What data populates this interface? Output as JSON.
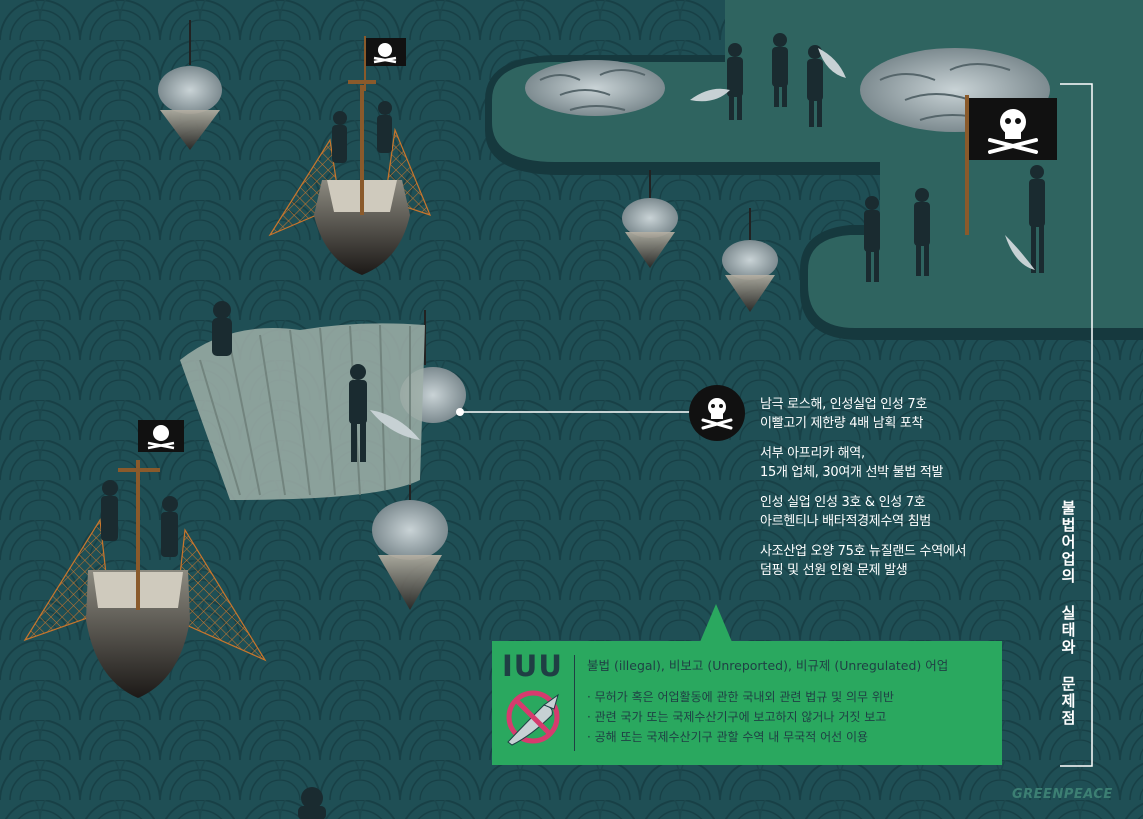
{
  "facts": [
    {
      "line1": "남극 로스해, 인성실업 인성 7호",
      "line2": "이빨고기 제한량 4배 남획 포착"
    },
    {
      "line1": "서부 아프리카 해역,",
      "line2": "15개 업체, 30여개 선박 불법 적발"
    },
    {
      "line1": "인성 실업 인성 3호 & 인성 7호",
      "line2": "아르헨티나 배타적경제수역 침범"
    },
    {
      "line1": "사조산업 오양 75호 뉴질랜드 수역에서",
      "line2": "덤핑 및 선원 인원 문제 발생"
    }
  ],
  "iuu": {
    "title": "IUU",
    "definition": "불법 (illegal), 비보고 (Unreported), 비규제 (Unregulated) 어업",
    "items": [
      "무허가 혹은 어업활동에 관한 국내외 관련 법규 및 의무 위반",
      "관련 국가 또는 국제수산기구에 보고하지 않거나 거짓 보고",
      "공해 또는 국제수산기구 관할 수역 내 무국적 어선 이용"
    ],
    "icon": "no-fishing-icon"
  },
  "vertical_title": "불법어업의 실태와 문제점",
  "brand": "GREENPEACE",
  "colors": {
    "ocean": "#1f4f55",
    "wave_line": "#173e44",
    "dock": "#2f6460",
    "iuu_green": "#2aa85f",
    "text_dark": "#1f3f44",
    "net_orange": "#c9762c"
  }
}
